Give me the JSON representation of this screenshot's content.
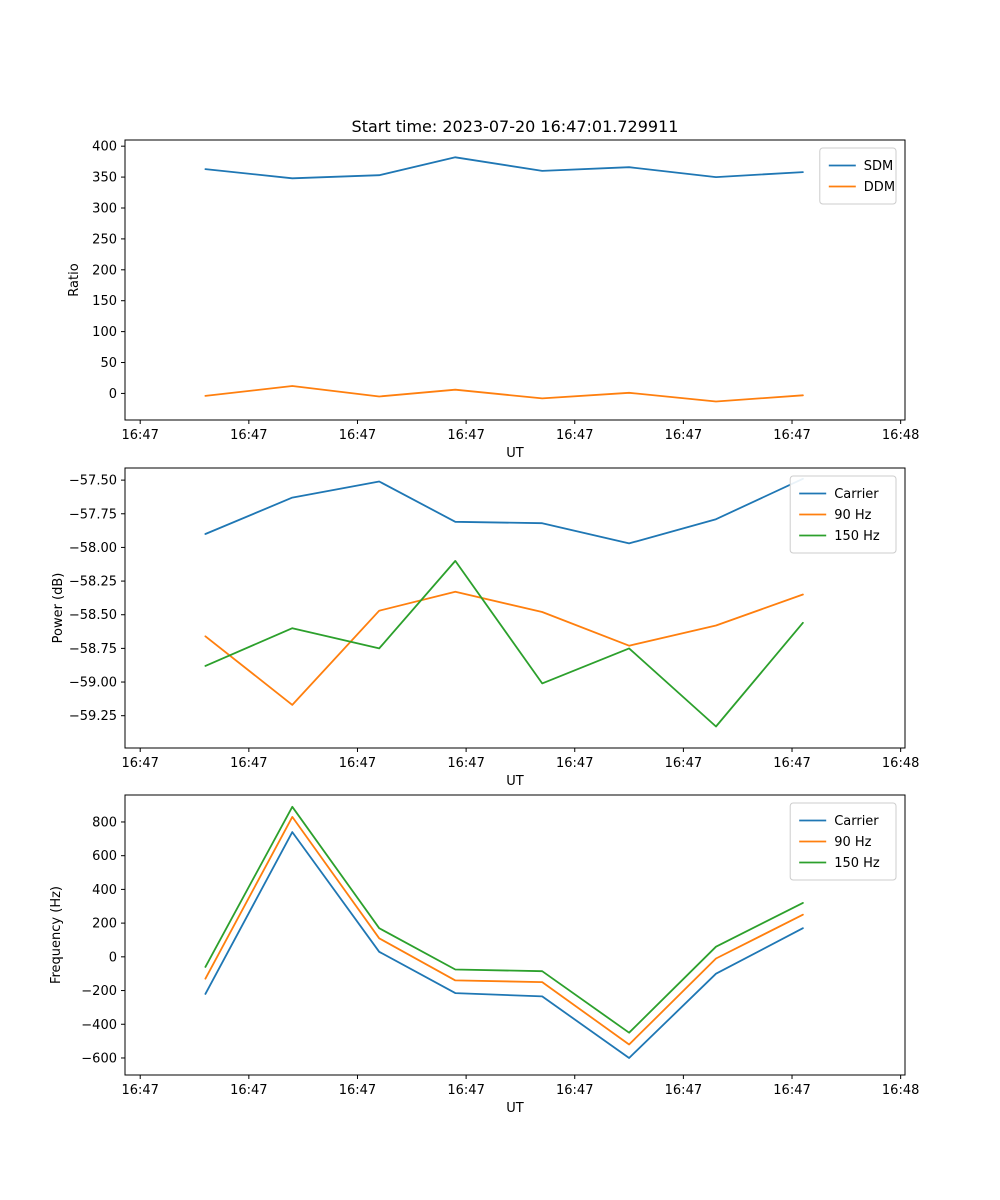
{
  "title": "Start time: 2023-07-20 16:47:01.729911",
  "colors": {
    "blue": "#1f77b4",
    "orange": "#ff7f0e",
    "green": "#2ca02c"
  },
  "chart_data": [
    {
      "type": "line",
      "title": "",
      "xlabel": "UT",
      "ylabel": "Ratio",
      "xlim": [
        -1.4,
        70.4
      ],
      "ylim": [
        -43,
        410
      ],
      "grid": false,
      "legend_position": "upper right",
      "x": [
        6,
        14,
        22,
        29,
        37,
        45,
        53,
        61
      ],
      "xticks": {
        "values": [
          0,
          10,
          20,
          30,
          40,
          50,
          60,
          70
        ],
        "labels": [
          "16:47",
          "16:47",
          "16:47",
          "16:47",
          "16:47",
          "16:47",
          "16:47",
          "16:48"
        ]
      },
      "yticks": {
        "values": [
          0,
          50,
          100,
          150,
          200,
          250,
          300,
          350,
          400
        ],
        "labels": [
          "0",
          "50",
          "100",
          "150",
          "200",
          "250",
          "300",
          "350",
          "400"
        ]
      },
      "series": [
        {
          "name": "SDM",
          "color": "#1f77b4",
          "values": [
            363,
            348,
            353,
            382,
            360,
            366,
            350,
            358
          ]
        },
        {
          "name": "DDM",
          "color": "#ff7f0e",
          "values": [
            -4,
            12,
            -5,
            6,
            -8,
            1,
            -13,
            -3
          ]
        }
      ]
    },
    {
      "type": "line",
      "title": "",
      "xlabel": "UT",
      "ylabel": "Power (dB)",
      "xlim": [
        -1.4,
        70.4
      ],
      "ylim": [
        -59.49,
        -57.41
      ],
      "grid": false,
      "legend_position": "upper right",
      "x": [
        6,
        14,
        22,
        29,
        37,
        45,
        53,
        61
      ],
      "xticks": {
        "values": [
          0,
          10,
          20,
          30,
          40,
          50,
          60,
          70
        ],
        "labels": [
          "16:47",
          "16:47",
          "16:47",
          "16:47",
          "16:47",
          "16:47",
          "16:47",
          "16:48"
        ]
      },
      "yticks": {
        "values": [
          -59.25,
          -59.0,
          -58.75,
          -58.5,
          -58.25,
          -58.0,
          -57.75,
          -57.5
        ],
        "labels": [
          "−59.25",
          "−59.00",
          "−58.75",
          "−58.50",
          "−58.25",
          "−58.00",
          "−57.75",
          "−57.50"
        ]
      },
      "series": [
        {
          "name": "Carrier",
          "color": "#1f77b4",
          "values": [
            -57.9,
            -57.63,
            -57.51,
            -57.81,
            -57.82,
            -57.97,
            -57.79,
            -57.49
          ]
        },
        {
          "name": "90 Hz",
          "color": "#ff7f0e",
          "values": [
            -58.66,
            -59.17,
            -58.47,
            -58.33,
            -58.48,
            -58.73,
            -58.58,
            -58.35
          ]
        },
        {
          "name": "150 Hz",
          "color": "#2ca02c",
          "values": [
            -58.88,
            -58.6,
            -58.75,
            -58.1,
            -59.01,
            -58.75,
            -59.33,
            -58.56
          ]
        }
      ]
    },
    {
      "type": "line",
      "title": "",
      "xlabel": "UT",
      "ylabel": "Frequency (Hz)",
      "xlim": [
        -1.4,
        70.4
      ],
      "ylim": [
        -701,
        960
      ],
      "grid": false,
      "legend_position": "upper right",
      "x": [
        6,
        14,
        22,
        29,
        37,
        45,
        53,
        61
      ],
      "xticks": {
        "values": [
          0,
          10,
          20,
          30,
          40,
          50,
          60,
          70
        ],
        "labels": [
          "16:47",
          "16:47",
          "16:47",
          "16:47",
          "16:47",
          "16:47",
          "16:47",
          "16:48"
        ]
      },
      "yticks": {
        "values": [
          -600,
          -400,
          -200,
          0,
          200,
          400,
          600,
          800
        ],
        "labels": [
          "−600",
          "−400",
          "−200",
          "0",
          "200",
          "400",
          "600",
          "800"
        ]
      },
      "series": [
        {
          "name": "Carrier",
          "color": "#1f77b4",
          "values": [
            -220,
            740,
            30,
            -215,
            -235,
            -600,
            -100,
            170
          ]
        },
        {
          "name": "90 Hz",
          "color": "#ff7f0e",
          "values": [
            -130,
            830,
            110,
            -140,
            -150,
            -520,
            -10,
            250
          ]
        },
        {
          "name": "150 Hz",
          "color": "#2ca02c",
          "values": [
            -60,
            890,
            170,
            -75,
            -85,
            -450,
            60,
            320
          ]
        }
      ]
    }
  ]
}
